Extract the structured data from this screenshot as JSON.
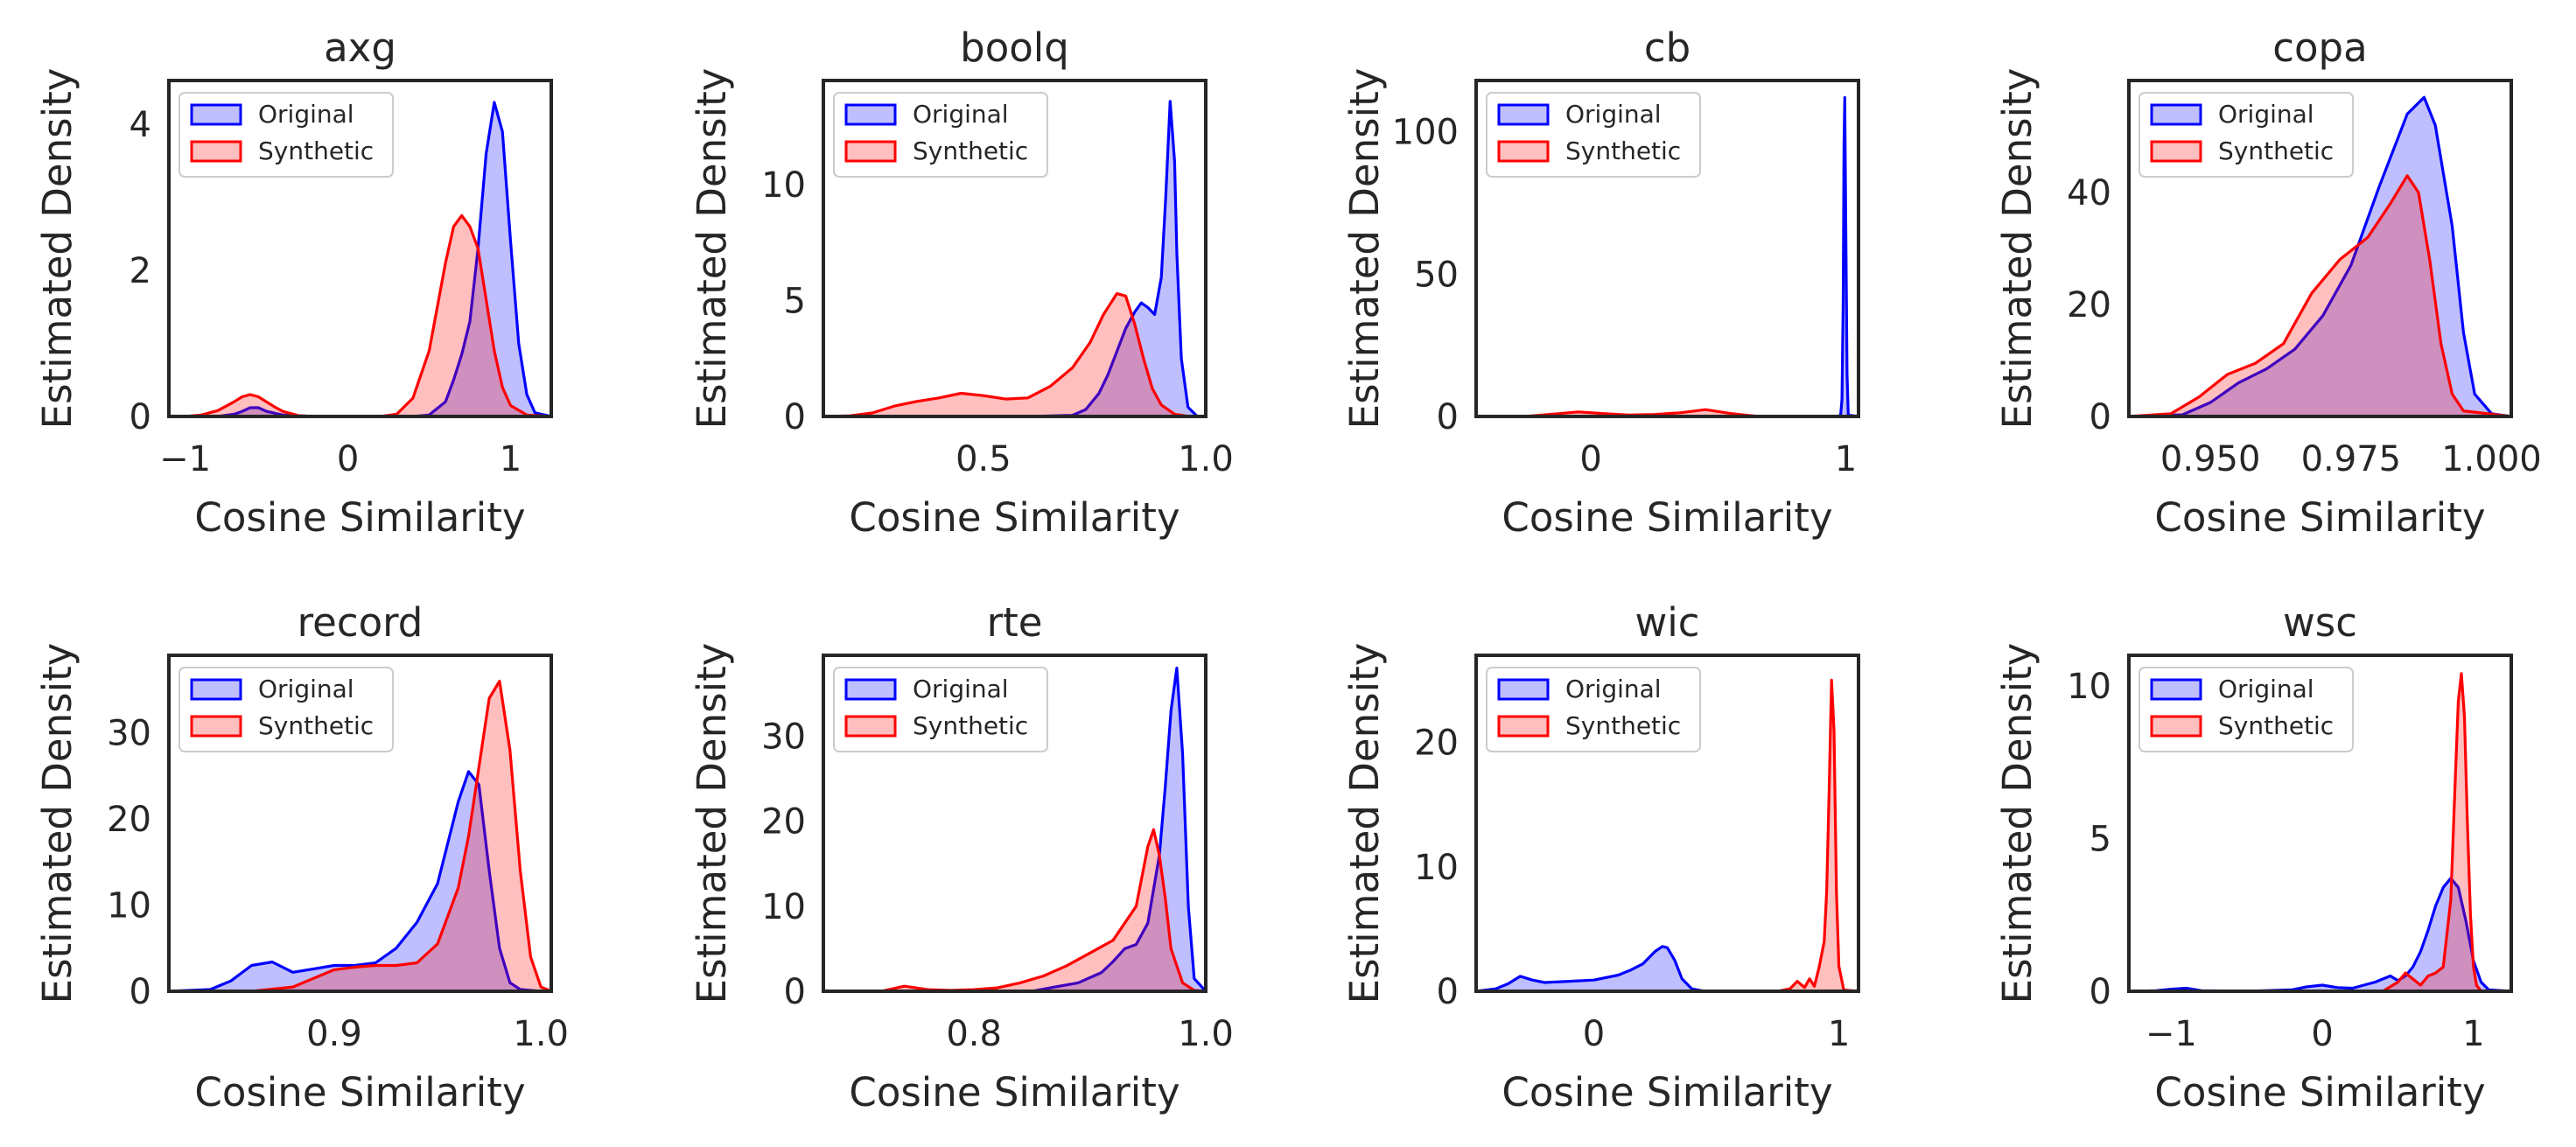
{
  "colors": {
    "original": "#0000ff",
    "synthetic": "#ff0000",
    "frame": "#262626"
  },
  "chart_data": [
    {
      "type": "area",
      "title": "axg",
      "xlabel": "Cosine Similarity",
      "ylabel": "Estimated Density",
      "xlim": [
        -1.1,
        1.25
      ],
      "ylim": [
        0,
        4.6
      ],
      "xticks": [
        -1,
        0,
        1
      ],
      "xticklabels": [
        "−1",
        "0",
        "1"
      ],
      "yticks": [
        0,
        2,
        4
      ],
      "yticklabels": [
        "0",
        "2",
        "4"
      ],
      "series": [
        {
          "name": "Original",
          "x": [
            -1.0,
            -0.8,
            -0.7,
            -0.65,
            -0.6,
            -0.55,
            -0.5,
            -0.4,
            -0.2,
            0,
            0.2,
            0.4,
            0.5,
            0.6,
            0.65,
            0.7,
            0.75,
            0.8,
            0.85,
            0.9,
            0.95,
            1.0,
            1.05,
            1.1,
            1.15,
            1.25
          ],
          "y": [
            0,
            0,
            0.03,
            0.07,
            0.12,
            0.12,
            0.07,
            0.02,
            0,
            0,
            0,
            0,
            0.02,
            0.2,
            0.5,
            0.85,
            1.3,
            2.3,
            3.6,
            4.3,
            3.9,
            2.4,
            1.0,
            0.3,
            0.05,
            0
          ]
        },
        {
          "name": "Synthetic",
          "x": [
            -1.0,
            -0.9,
            -0.8,
            -0.7,
            -0.65,
            -0.6,
            -0.55,
            -0.5,
            -0.45,
            -0.4,
            -0.3,
            -0.2,
            0,
            0.2,
            0.3,
            0.4,
            0.5,
            0.55,
            0.6,
            0.65,
            0.7,
            0.75,
            0.8,
            0.85,
            0.9,
            0.95,
            1.0,
            1.1,
            1.25
          ],
          "y": [
            0,
            0.02,
            0.08,
            0.2,
            0.27,
            0.3,
            0.27,
            0.2,
            0.13,
            0.07,
            0.01,
            0,
            0,
            0,
            0.03,
            0.25,
            0.9,
            1.5,
            2.1,
            2.6,
            2.75,
            2.6,
            2.3,
            1.6,
            0.9,
            0.4,
            0.15,
            0.02,
            0
          ]
        }
      ]
    },
    {
      "type": "area",
      "title": "boolq",
      "xlabel": "Cosine Similarity",
      "ylabel": "Estimated Density",
      "xlim": [
        0.14,
        1.0
      ],
      "ylim": [
        0,
        14.5
      ],
      "xticks": [
        0.5,
        1.0
      ],
      "xticklabels": [
        "0.5",
        "1.0"
      ],
      "yticks": [
        0,
        5,
        10
      ],
      "yticklabels": [
        "0",
        "5",
        "10"
      ],
      "series": [
        {
          "name": "Original",
          "x": [
            0.14,
            0.6,
            0.7,
            0.73,
            0.76,
            0.78,
            0.8,
            0.82,
            0.84,
            0.855,
            0.87,
            0.885,
            0.9,
            0.91,
            0.92,
            0.93,
            0.935,
            0.945,
            0.96,
            0.98,
            1.0
          ],
          "y": [
            0,
            0,
            0.05,
            0.3,
            1.0,
            1.8,
            2.8,
            3.8,
            4.5,
            4.9,
            4.7,
            4.4,
            6.0,
            9.5,
            13.6,
            11.0,
            7.0,
            2.5,
            0.4,
            0.02,
            0
          ]
        },
        {
          "name": "Synthetic",
          "x": [
            0.14,
            0.2,
            0.25,
            0.3,
            0.35,
            0.4,
            0.45,
            0.5,
            0.55,
            0.6,
            0.65,
            0.7,
            0.74,
            0.77,
            0.8,
            0.82,
            0.84,
            0.86,
            0.88,
            0.9,
            0.93,
            0.96,
            1.0
          ],
          "y": [
            0,
            0.03,
            0.15,
            0.45,
            0.65,
            0.8,
            1.0,
            0.9,
            0.75,
            0.8,
            1.3,
            2.1,
            3.2,
            4.4,
            5.3,
            5.2,
            4.0,
            2.5,
            1.2,
            0.5,
            0.1,
            0.01,
            0
          ]
        }
      ]
    },
    {
      "type": "area",
      "title": "cb",
      "xlabel": "Cosine Similarity",
      "ylabel": "Estimated Density",
      "xlim": [
        -0.45,
        1.05
      ],
      "ylim": [
        0,
        118
      ],
      "xticks": [
        0,
        1
      ],
      "xticklabels": [
        "0",
        "1"
      ],
      "yticks": [
        0,
        50,
        100
      ],
      "yticklabels": [
        "0",
        "50",
        "100"
      ],
      "series": [
        {
          "name": "Original",
          "x": [
            -0.45,
            0.97,
            0.98,
            0.985,
            0.99,
            0.993,
            0.996,
            1.0,
            1.005,
            1.01,
            1.05
          ],
          "y": [
            0,
            0,
            0.5,
            6,
            40,
            95,
            112,
            70,
            15,
            0.5,
            0
          ]
        },
        {
          "name": "Synthetic",
          "x": [
            -0.45,
            -0.25,
            -0.15,
            -0.05,
            0.05,
            0.15,
            0.25,
            0.35,
            0.45,
            0.55,
            0.65,
            1.05
          ],
          "y": [
            0,
            0.1,
            0.8,
            1.6,
            1.0,
            0.5,
            0.7,
            1.3,
            2.4,
            1.0,
            0.1,
            0
          ]
        }
      ]
    },
    {
      "type": "area",
      "title": "copa",
      "xlabel": "Cosine Similarity",
      "ylabel": "Estimated Density",
      "xlim": [
        0.9355,
        1.0035
      ],
      "ylim": [
        0,
        60
      ],
      "xticks": [
        0.95,
        0.975,
        1.0
      ],
      "xticklabels": [
        "0.950",
        "0.975",
        "1.000"
      ],
      "yticks": [
        0,
        20,
        40
      ],
      "yticklabels": [
        "0",
        "20",
        "40"
      ],
      "series": [
        {
          "name": "Original",
          "x": [
            0.9355,
            0.945,
            0.95,
            0.955,
            0.96,
            0.965,
            0.97,
            0.975,
            0.98,
            0.985,
            0.988,
            0.99,
            0.993,
            0.995,
            0.997,
            1.0,
            1.0035
          ],
          "y": [
            0,
            0.3,
            2.5,
            6.0,
            8.5,
            12,
            18,
            27,
            41,
            54,
            57,
            52,
            34,
            15,
            4,
            0.5,
            0
          ]
        },
        {
          "name": "Synthetic",
          "x": [
            0.9355,
            0.943,
            0.948,
            0.953,
            0.958,
            0.963,
            0.968,
            0.973,
            0.978,
            0.982,
            0.985,
            0.987,
            0.989,
            0.991,
            0.993,
            0.995,
            1.0035
          ],
          "y": [
            0,
            0.5,
            3.5,
            7.5,
            9.5,
            13,
            22,
            28,
            32,
            38,
            43,
            40,
            28,
            13,
            4,
            1,
            0
          ]
        }
      ]
    },
    {
      "type": "area",
      "title": "record",
      "xlabel": "Cosine Similarity",
      "ylabel": "Estimated Density",
      "xlim": [
        0.82,
        1.005
      ],
      "ylim": [
        0,
        39
      ],
      "xticks": [
        0.9,
        1.0
      ],
      "xticklabels": [
        "0.9",
        "1.0"
      ],
      "yticks": [
        0,
        10,
        20,
        30
      ],
      "yticklabels": [
        "0",
        "10",
        "20",
        "30"
      ],
      "series": [
        {
          "name": "Original",
          "x": [
            0.82,
            0.84,
            0.85,
            0.86,
            0.87,
            0.88,
            0.89,
            0.9,
            0.91,
            0.92,
            0.93,
            0.94,
            0.95,
            0.96,
            0.965,
            0.97,
            0.975,
            0.98,
            0.985,
            0.99,
            1.0,
            1.005
          ],
          "y": [
            0,
            0.2,
            1.2,
            3.0,
            3.4,
            2.2,
            2.6,
            3.0,
            3.0,
            3.3,
            5.0,
            8.0,
            12.5,
            22,
            25.5,
            24,
            14,
            5,
            1,
            0.2,
            0,
            0
          ]
        },
        {
          "name": "Synthetic",
          "x": [
            0.82,
            0.86,
            0.88,
            0.89,
            0.9,
            0.91,
            0.92,
            0.93,
            0.94,
            0.95,
            0.96,
            0.965,
            0.97,
            0.975,
            0.98,
            0.985,
            0.99,
            0.995,
            1.0,
            1.005
          ],
          "y": [
            0,
            0,
            0.5,
            1.5,
            2.5,
            2.8,
            3.0,
            3.0,
            3.3,
            5.5,
            12,
            18,
            26,
            34,
            36,
            28,
            14,
            4,
            0.5,
            0
          ]
        }
      ]
    },
    {
      "type": "area",
      "title": "rte",
      "xlabel": "Cosine Similarity",
      "ylabel": "Estimated Density",
      "xlim": [
        0.67,
        1.0
      ],
      "ylim": [
        0,
        39.5
      ],
      "xticks": [
        0.8,
        1.0
      ],
      "xticklabels": [
        "0.8",
        "1.0"
      ],
      "yticks": [
        0,
        10,
        20,
        30
      ],
      "yticklabels": [
        "0",
        "10",
        "20",
        "30"
      ],
      "series": [
        {
          "name": "Original",
          "x": [
            0.67,
            0.85,
            0.87,
            0.89,
            0.91,
            0.92,
            0.93,
            0.94,
            0.95,
            0.96,
            0.965,
            0.97,
            0.975,
            0.98,
            0.985,
            0.99,
            1.0
          ],
          "y": [
            0,
            0,
            0.5,
            1.0,
            2.2,
            3.5,
            5.0,
            5.5,
            8.0,
            16,
            24,
            33,
            38,
            28,
            10,
            1.5,
            0
          ]
        },
        {
          "name": "Synthetic",
          "x": [
            0.67,
            0.72,
            0.74,
            0.76,
            0.78,
            0.8,
            0.82,
            0.84,
            0.86,
            0.88,
            0.9,
            0.92,
            0.94,
            0.95,
            0.955,
            0.96,
            0.965,
            0.97,
            0.98,
            0.99,
            1.0
          ],
          "y": [
            0,
            0,
            0.6,
            0.2,
            0.1,
            0.2,
            0.4,
            1.0,
            1.8,
            3.0,
            4.5,
            6.0,
            10,
            17,
            19,
            16,
            11,
            5,
            1,
            0.1,
            0
          ]
        }
      ]
    },
    {
      "type": "area",
      "title": "wic",
      "xlabel": "Cosine Similarity",
      "ylabel": "Estimated Density",
      "xlim": [
        -0.48,
        1.08
      ],
      "ylim": [
        0,
        27
      ],
      "xticks": [
        0,
        1
      ],
      "xticklabels": [
        "0",
        "1"
      ],
      "yticks": [
        0,
        10,
        20
      ],
      "yticklabels": [
        "0",
        "10",
        "20"
      ],
      "series": [
        {
          "name": "Original",
          "x": [
            -0.48,
            -0.4,
            -0.35,
            -0.3,
            -0.25,
            -0.2,
            -0.1,
            0,
            0.1,
            0.15,
            0.2,
            0.25,
            0.28,
            0.3,
            0.33,
            0.36,
            0.4,
            0.45,
            1.08
          ],
          "y": [
            0,
            0.2,
            0.6,
            1.2,
            0.9,
            0.7,
            0.8,
            0.9,
            1.3,
            1.7,
            2.2,
            3.2,
            3.6,
            3.5,
            2.5,
            1.0,
            0.2,
            0,
            0
          ]
        },
        {
          "name": "Synthetic",
          "x": [
            -0.48,
            0.75,
            0.8,
            0.83,
            0.86,
            0.88,
            0.9,
            0.92,
            0.94,
            0.95,
            0.96,
            0.97,
            0.98,
            0.99,
            1.0,
            1.02,
            1.08
          ],
          "y": [
            0,
            0,
            0.2,
            0.8,
            0.3,
            1.0,
            0.4,
            2.0,
            4.0,
            8.0,
            16,
            25,
            21,
            8,
            2,
            0.1,
            0
          ]
        }
      ]
    },
    {
      "type": "area",
      "title": "wsc",
      "xlabel": "Cosine Similarity",
      "ylabel": "Estimated Density",
      "xlim": [
        -1.28,
        1.25
      ],
      "ylim": [
        0,
        11
      ],
      "xticks": [
        -1,
        0,
        1
      ],
      "xticklabels": [
        "−1",
        "0",
        "1"
      ],
      "yticks": [
        0,
        5,
        10
      ],
      "yticklabels": [
        "0",
        "5",
        "10"
      ],
      "series": [
        {
          "name": "Original",
          "x": [
            -1.28,
            -1.1,
            -1.0,
            -0.9,
            -0.8,
            -0.5,
            -0.2,
            -0.1,
            0,
            0.1,
            0.2,
            0.35,
            0.45,
            0.5,
            0.55,
            0.6,
            0.65,
            0.7,
            0.75,
            0.8,
            0.85,
            0.9,
            0.95,
            1.0,
            1.05,
            1.1,
            1.25
          ],
          "y": [
            0,
            0.02,
            0.07,
            0.1,
            0.02,
            0,
            0.05,
            0.15,
            0.2,
            0.12,
            0.1,
            0.3,
            0.5,
            0.35,
            0.5,
            0.8,
            1.3,
            2.0,
            2.8,
            3.4,
            3.7,
            3.4,
            2.3,
            1.0,
            0.3,
            0.05,
            0
          ]
        },
        {
          "name": "Synthetic",
          "x": [
            -1.28,
            0.4,
            0.5,
            0.55,
            0.6,
            0.65,
            0.7,
            0.75,
            0.8,
            0.85,
            0.88,
            0.9,
            0.92,
            0.94,
            0.96,
            0.98,
            1.0,
            1.02,
            1.05,
            1.25
          ],
          "y": [
            0,
            0,
            0.3,
            0.6,
            0.4,
            0.2,
            0.5,
            0.6,
            0.8,
            3.0,
            7.0,
            9.5,
            10.4,
            9.0,
            5.5,
            2.5,
            0.8,
            0.2,
            0,
            0
          ]
        }
      ]
    }
  ]
}
